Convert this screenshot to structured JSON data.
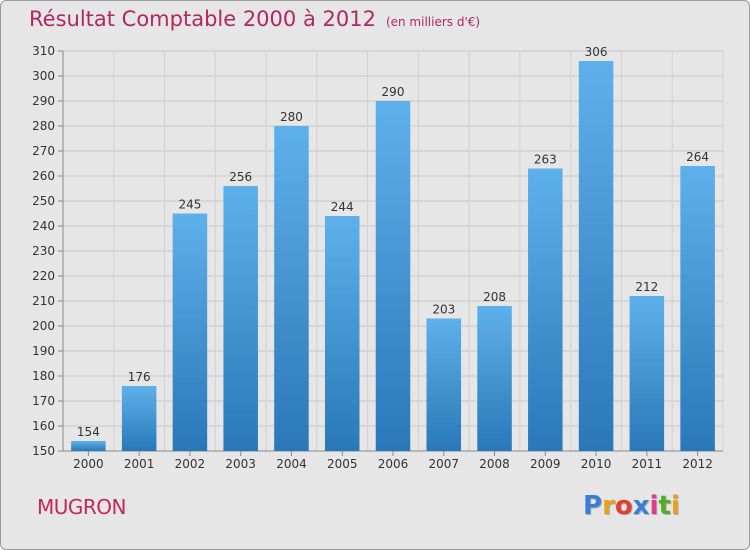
{
  "header": {
    "title": "Résultat Comptable 2000 à 2012",
    "subtitle": "(en milliers d'€)"
  },
  "footer": {
    "commune": "MUGRON",
    "logo": {
      "text": "Proxiti",
      "letters": [
        "P",
        "r",
        "o",
        "x",
        "i",
        "t",
        "i"
      ],
      "colors": [
        "#3a7fd0",
        "#e8a11a",
        "#e04030",
        "#3a7fd0",
        "#e03a8a",
        "#5aaa2a",
        "#e8a11a"
      ]
    }
  },
  "colors": {
    "bar_light": "#5eb0ea",
    "bar_dark": "#2a78b8",
    "title": "#b0285f",
    "background": "#e6e6e6"
  },
  "chart_data": {
    "type": "bar",
    "categories": [
      "2000",
      "2001",
      "2002",
      "2003",
      "2004",
      "2005",
      "2006",
      "2007",
      "2008",
      "2009",
      "2010",
      "2011",
      "2012"
    ],
    "values": [
      154,
      176,
      245,
      256,
      280,
      244,
      290,
      203,
      208,
      263,
      306,
      212,
      264
    ],
    "ylim": [
      150,
      310
    ],
    "yticks": [
      150,
      160,
      170,
      180,
      190,
      200,
      210,
      220,
      230,
      240,
      250,
      260,
      270,
      280,
      290,
      300,
      310
    ],
    "grid": true
  }
}
